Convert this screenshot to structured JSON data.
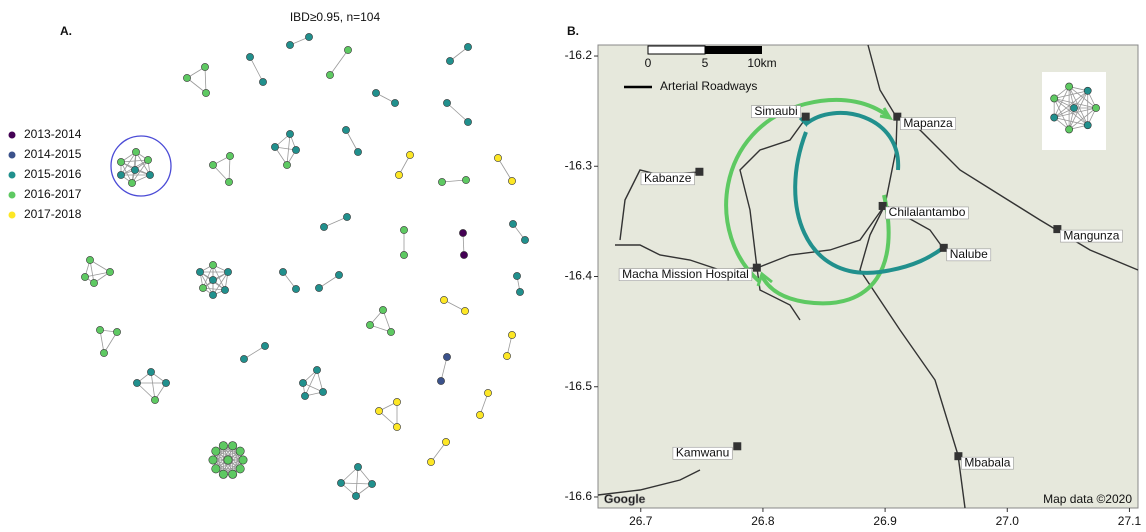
{
  "panel_a": {
    "label": "A.",
    "title": "IBD≥0.95, n=104",
    "legend": [
      {
        "label": "2013-2014",
        "color": "#440154"
      },
      {
        "label": "2014-2015",
        "color": "#3b528b"
      },
      {
        "label": "2015-2016",
        "color": "#21908d"
      },
      {
        "label": "2016-2017",
        "color": "#5ec962"
      },
      {
        "label": "2017-2018",
        "color": "#fde725"
      }
    ]
  },
  "panel_b": {
    "label": "B.",
    "type": "map",
    "xlim": [
      26.665,
      27.107
    ],
    "ylim": [
      -16.61,
      -16.19
    ],
    "xticks": [
      26.7,
      26.8,
      26.9,
      {
        "value": 27,
        "label": "27.0"
      },
      27.1
    ],
    "yticks": [
      -16.2,
      -16.3,
      -16.4,
      -16.5,
      -16.6
    ],
    "scale_labels": [
      "0",
      "5",
      "10km"
    ],
    "road_legend": "Arterial Roadways",
    "attribution": "Map data ©2020",
    "logo": "Google",
    "places": [
      {
        "name": "Simaubi",
        "x": 26.835,
        "y": -16.255
      },
      {
        "name": "Mapanza",
        "x": 26.91,
        "y": -16.255
      },
      {
        "name": "Kabanze",
        "x": 26.748,
        "y": -16.305
      },
      {
        "name": "Chilalantambo",
        "x": 26.898,
        "y": -16.336
      },
      {
        "name": "Nalube",
        "x": 26.948,
        "y": -16.374
      },
      {
        "name": "Mangunza",
        "x": 27.041,
        "y": -16.357
      },
      {
        "name": "Macha Mission Hospital",
        "x": 26.795,
        "y": -16.392
      },
      {
        "name": "Kamwanu",
        "x": 26.779,
        "y": -16.554
      },
      {
        "name": "Mbabala",
        "x": 26.96,
        "y": -16.563
      }
    ]
  }
}
